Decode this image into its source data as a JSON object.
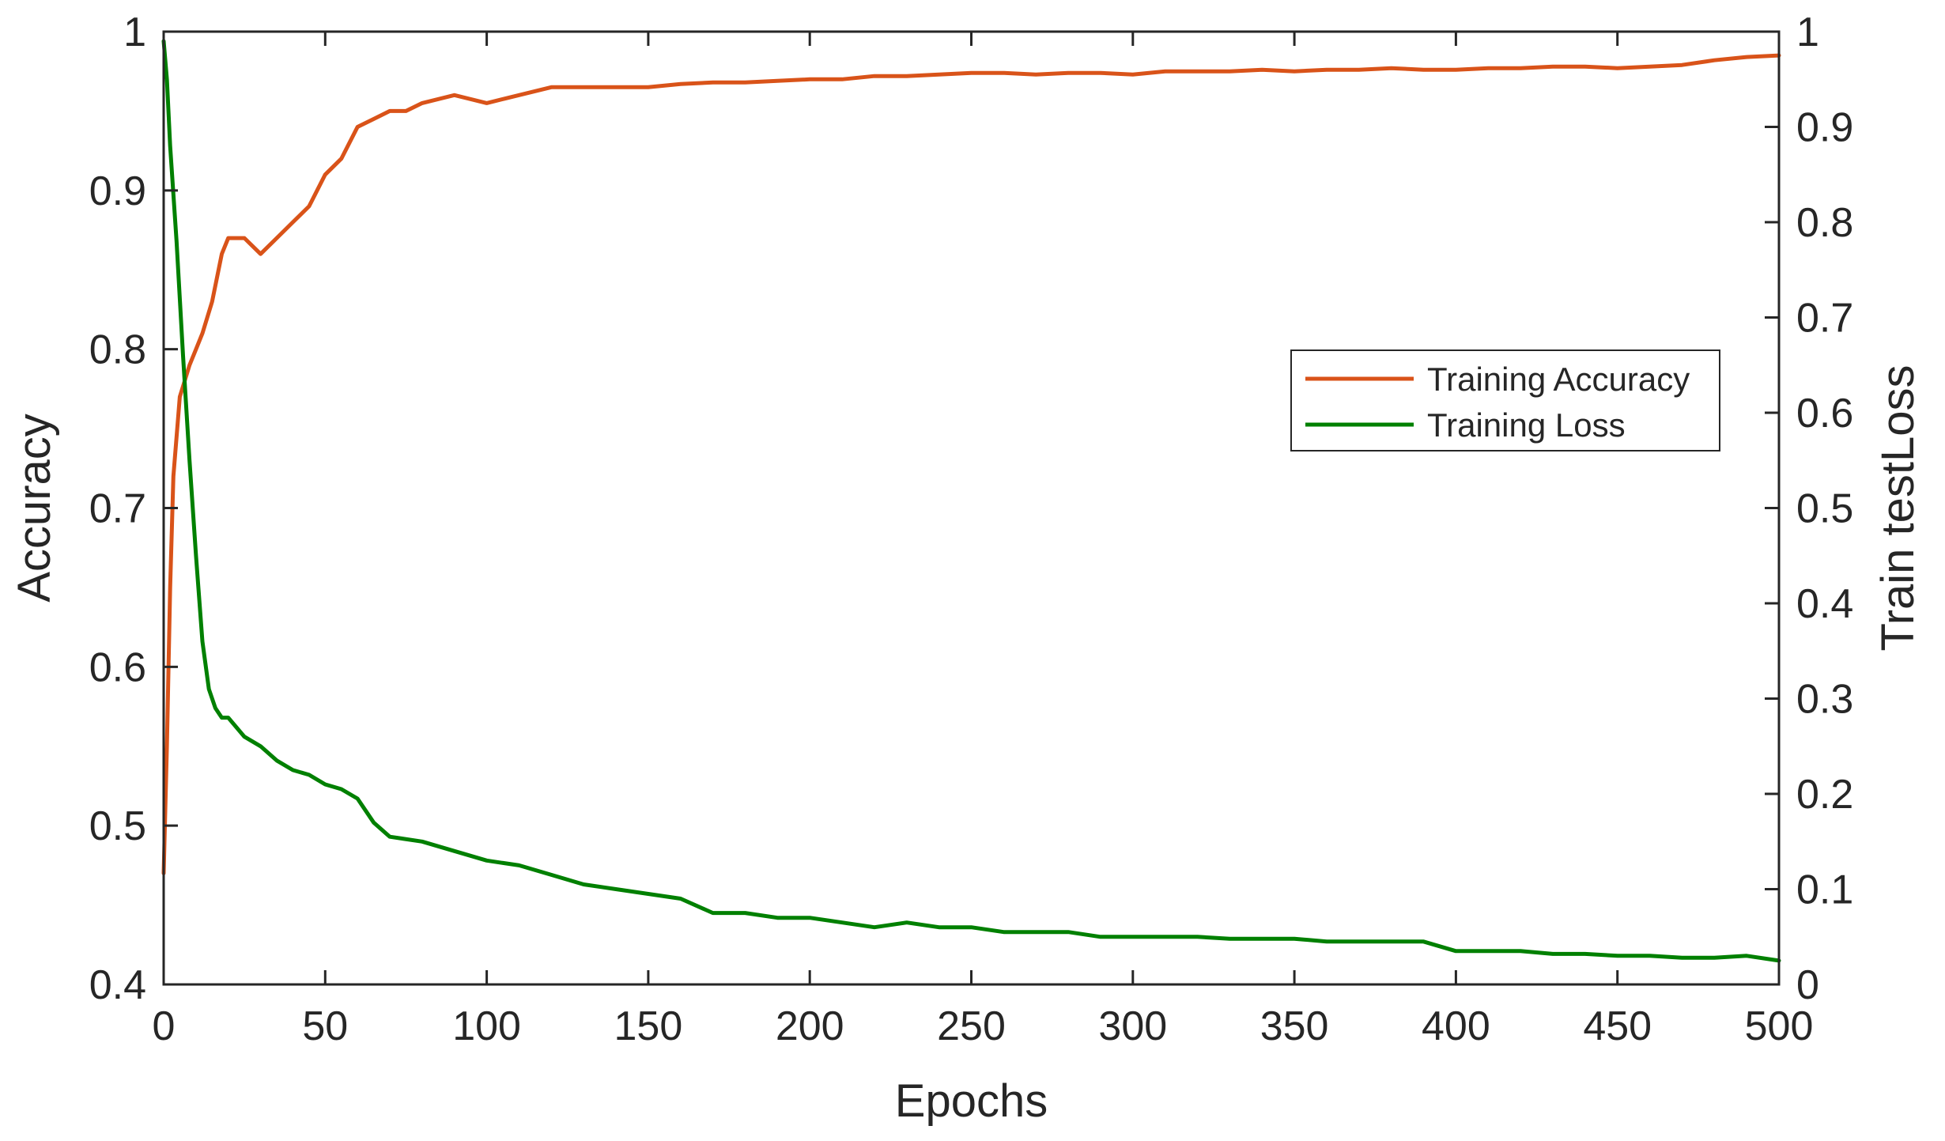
{
  "chart_data": {
    "type": "line",
    "xlabel": "Epochs",
    "ylabel_left": "Accuracy",
    "ylabel_right": "Train testLoss",
    "xlim": [
      0,
      500
    ],
    "ylim_left": [
      0.4,
      1
    ],
    "ylim_right": [
      0,
      1
    ],
    "xticks": [
      "0",
      "50",
      "100",
      "150",
      "200",
      "250",
      "300",
      "350",
      "400",
      "450",
      "500"
    ],
    "yticks_left": [
      "0.4",
      "0.5",
      "0.6",
      "0.7",
      "0.8",
      "0.9",
      "1"
    ],
    "yticks_right": [
      "0",
      "0.1",
      "0.2",
      "0.3",
      "0.4",
      "0.5",
      "0.6",
      "0.7",
      "0.8",
      "0.9",
      "1"
    ],
    "grid": false,
    "legend_position": "center-right",
    "series": [
      {
        "name": "Training Accuracy",
        "axis": "left",
        "color": "#d95319",
        "x": [
          0,
          1,
          2,
          3,
          5,
          8,
          10,
          12,
          15,
          18,
          20,
          25,
          30,
          35,
          40,
          45,
          50,
          55,
          60,
          65,
          70,
          75,
          80,
          90,
          100,
          110,
          120,
          130,
          140,
          150,
          160,
          170,
          180,
          190,
          200,
          210,
          220,
          230,
          240,
          250,
          260,
          270,
          280,
          290,
          300,
          310,
          320,
          330,
          340,
          350,
          360,
          370,
          380,
          390,
          400,
          410,
          420,
          430,
          440,
          450,
          460,
          470,
          480,
          490,
          500
        ],
        "y": [
          0.47,
          0.55,
          0.65,
          0.72,
          0.77,
          0.79,
          0.8,
          0.81,
          0.83,
          0.86,
          0.87,
          0.87,
          0.86,
          0.87,
          0.88,
          0.89,
          0.91,
          0.92,
          0.94,
          0.945,
          0.95,
          0.95,
          0.955,
          0.96,
          0.955,
          0.96,
          0.965,
          0.965,
          0.965,
          0.965,
          0.967,
          0.968,
          0.968,
          0.969,
          0.97,
          0.97,
          0.972,
          0.972,
          0.973,
          0.974,
          0.974,
          0.973,
          0.974,
          0.974,
          0.973,
          0.975,
          0.975,
          0.975,
          0.976,
          0.975,
          0.976,
          0.976,
          0.977,
          0.976,
          0.976,
          0.977,
          0.977,
          0.978,
          0.978,
          0.977,
          0.978,
          0.979,
          0.982,
          0.984,
          0.985
        ]
      },
      {
        "name": "Training Loss",
        "axis": "right",
        "color": "#008000",
        "x": [
          0,
          1,
          2,
          4,
          6,
          8,
          10,
          12,
          14,
          16,
          18,
          20,
          25,
          30,
          35,
          40,
          45,
          50,
          55,
          60,
          65,
          70,
          80,
          90,
          100,
          110,
          120,
          130,
          140,
          150,
          160,
          170,
          180,
          190,
          200,
          210,
          220,
          230,
          240,
          250,
          260,
          270,
          280,
          290,
          300,
          310,
          320,
          330,
          340,
          350,
          360,
          370,
          380,
          390,
          400,
          410,
          420,
          430,
          440,
          450,
          460,
          470,
          480,
          490,
          500
        ],
        "y": [
          0.99,
          0.95,
          0.88,
          0.78,
          0.66,
          0.55,
          0.45,
          0.36,
          0.31,
          0.29,
          0.28,
          0.28,
          0.26,
          0.25,
          0.235,
          0.225,
          0.22,
          0.21,
          0.205,
          0.195,
          0.17,
          0.155,
          0.15,
          0.14,
          0.13,
          0.125,
          0.115,
          0.105,
          0.1,
          0.095,
          0.09,
          0.075,
          0.075,
          0.07,
          0.07,
          0.065,
          0.06,
          0.065,
          0.06,
          0.06,
          0.055,
          0.055,
          0.055,
          0.05,
          0.05,
          0.05,
          0.05,
          0.048,
          0.048,
          0.048,
          0.045,
          0.045,
          0.045,
          0.045,
          0.035,
          0.035,
          0.035,
          0.032,
          0.032,
          0.03,
          0.03,
          0.028,
          0.028,
          0.03,
          0.025
        ]
      }
    ]
  }
}
